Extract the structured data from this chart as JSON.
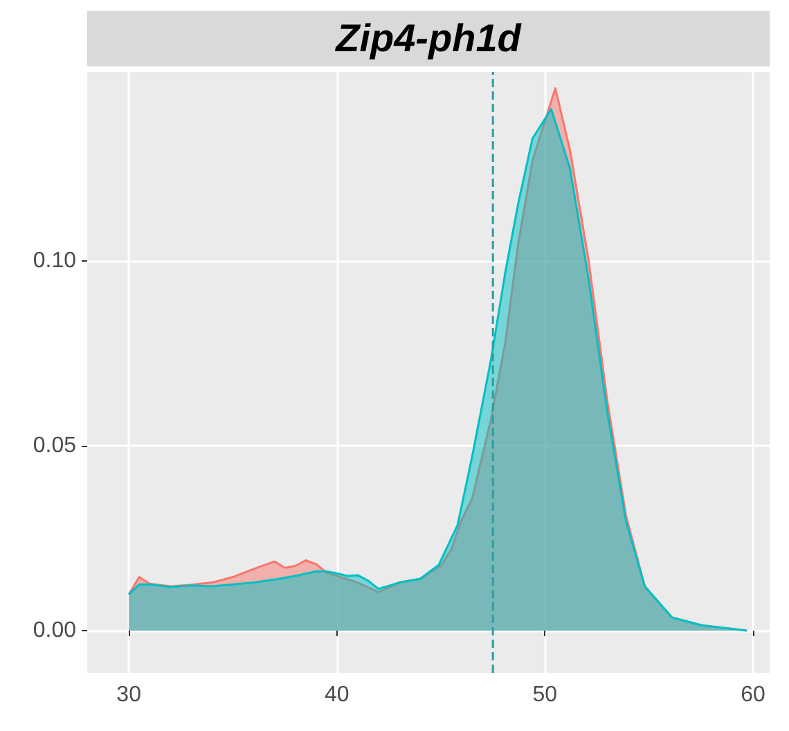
{
  "chart_data": {
    "type": "area",
    "title": "Zip4-ph1d",
    "xlim": [
      28,
      60.8
    ],
    "xticks": [
      30,
      40,
      50,
      60
    ],
    "ylim": [
      -0.0114,
      0.151
    ],
    "yticks": [
      {
        "value": 0,
        "label": "0.00"
      },
      {
        "value": 0.05,
        "label": "0.05"
      },
      {
        "value": 0.1,
        "label": "0.10"
      }
    ],
    "grid": true,
    "ref_lines": [
      {
        "axis": "x",
        "value": 47.5,
        "label": null,
        "color": "#2a9d9f",
        "line_style": "dashed"
      }
    ],
    "series": [
      {
        "color": "#f8766d",
        "x": [
          30,
          30.5,
          31,
          32,
          33,
          34,
          35,
          36,
          37,
          37.5,
          38,
          38.5,
          39,
          39.5,
          40,
          41,
          42,
          43,
          44,
          45,
          45.5,
          46,
          46.5,
          47.4,
          48.1,
          48.7,
          49.4,
          50.5,
          51.2,
          52.1,
          53.0,
          53.9,
          54.8,
          56.1,
          57.5,
          59.7
        ],
        "values": [
          0.0098,
          0.0145,
          0.0127,
          0.012,
          0.0124,
          0.013,
          0.0145,
          0.0167,
          0.0187,
          0.017,
          0.0175,
          0.019,
          0.018,
          0.0157,
          0.0148,
          0.013,
          0.0104,
          0.013,
          0.014,
          0.0175,
          0.022,
          0.03,
          0.0356,
          0.057,
          0.078,
          0.104,
          0.127,
          0.1466,
          0.13,
          0.1,
          0.062,
          0.031,
          0.012,
          0.0036,
          0.0015,
          0
        ]
      },
      {
        "color": "#00bfc4",
        "x": [
          30,
          30.5,
          31,
          32,
          33,
          34,
          35,
          36,
          37,
          38,
          39,
          39.5,
          40,
          40.5,
          41,
          41.5,
          42,
          43,
          44,
          44.9,
          45.8,
          46.5,
          47.4,
          48.1,
          48.7,
          49.4,
          50.3,
          51.2,
          52.1,
          53.0,
          53.9,
          54.8,
          56.1,
          57.5,
          59.7
        ],
        "values": [
          0.0098,
          0.0125,
          0.0125,
          0.0118,
          0.0122,
          0.012,
          0.0125,
          0.013,
          0.0138,
          0.0148,
          0.016,
          0.016,
          0.0155,
          0.0148,
          0.015,
          0.0135,
          0.0113,
          0.013,
          0.014,
          0.0178,
          0.0285,
          0.047,
          0.073,
          0.097,
          0.115,
          0.133,
          0.141,
          0.125,
          0.095,
          0.059,
          0.0295,
          0.012,
          0.0036,
          0.0015,
          0
        ]
      }
    ]
  }
}
